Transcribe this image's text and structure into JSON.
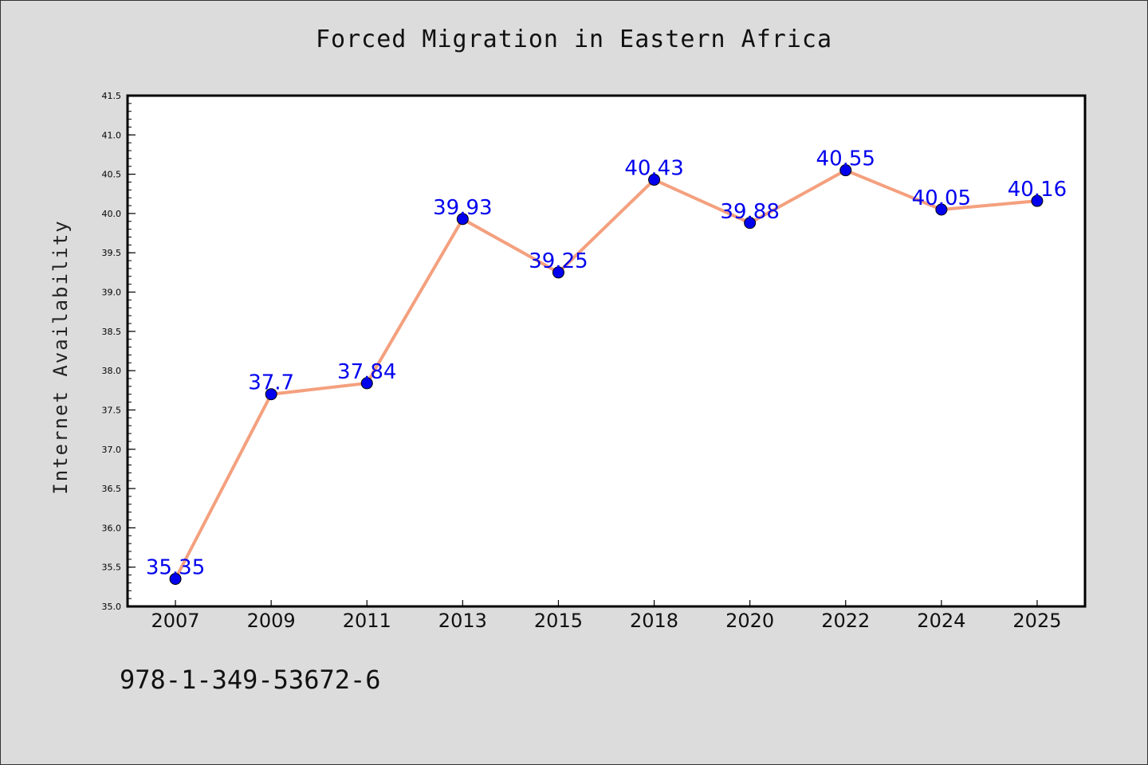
{
  "chart_data": {
    "type": "line",
    "title": "Forced Migration in Eastern Africa",
    "xlabel": "",
    "ylabel": "Internet Availability",
    "categories": [
      "2007",
      "2009",
      "2011",
      "2013",
      "2015",
      "2018",
      "2020",
      "2022",
      "2024",
      "2025"
    ],
    "series": [
      {
        "values": [
          35.35,
          37.7,
          37.84,
          39.93,
          39.25,
          40.43,
          39.88,
          40.55,
          40.05,
          40.16
        ],
        "data_labels": [
          "35.35",
          "37.7",
          "37.84",
          "39.93",
          "39.25",
          "40.43",
          "39.88",
          "40.55",
          "40.05",
          "40.16"
        ]
      }
    ],
    "ylim": [
      35.0,
      41.5
    ],
    "y_ticks": [
      "35.0",
      "35.5",
      "36.0",
      "36.5",
      "37.0",
      "37.5",
      "38.0",
      "38.5",
      "39.0",
      "39.5",
      "40.0",
      "40.5",
      "41.0",
      "41.5"
    ],
    "grid": false,
    "legend": "none",
    "colors": {
      "line": "#f4a07e",
      "marker": "#0000ee",
      "data_label": "#0000ee",
      "plot_background": "#ffffff",
      "figure_background": "#dcdcdc"
    }
  },
  "footer": {
    "code": "978-1-349-53672-6"
  }
}
